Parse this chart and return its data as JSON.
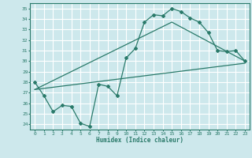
{
  "xlabel": "Humidex (Indice chaleur)",
  "background_color": "#cde8ec",
  "grid_color": "#ffffff",
  "line_color": "#2a7a6a",
  "xlim": [
    -0.5,
    23.5
  ],
  "ylim": [
    23.5,
    35.5
  ],
  "xticks": [
    0,
    1,
    2,
    3,
    4,
    5,
    6,
    7,
    8,
    9,
    10,
    11,
    12,
    13,
    14,
    15,
    16,
    17,
    18,
    19,
    20,
    21,
    22,
    23
  ],
  "yticks": [
    24,
    25,
    26,
    27,
    28,
    29,
    30,
    31,
    32,
    33,
    34,
    35
  ],
  "main_x": [
    0,
    1,
    2,
    3,
    4,
    5,
    6,
    7,
    8,
    9,
    10,
    11,
    12,
    13,
    14,
    15,
    16,
    17,
    18,
    19,
    20,
    21,
    22,
    23
  ],
  "main_y": [
    28.0,
    26.7,
    25.2,
    25.8,
    25.7,
    24.1,
    23.8,
    27.8,
    27.6,
    26.7,
    30.3,
    31.2,
    33.7,
    34.4,
    34.3,
    35.0,
    34.7,
    34.1,
    33.7,
    32.7,
    31.0,
    30.9,
    31.0,
    30.0
  ],
  "trend1_x": [
    0,
    23
  ],
  "trend1_y": [
    27.3,
    29.8
  ],
  "trend2_x": [
    0,
    15,
    23
  ],
  "trend2_y": [
    27.3,
    33.7,
    30.0
  ]
}
